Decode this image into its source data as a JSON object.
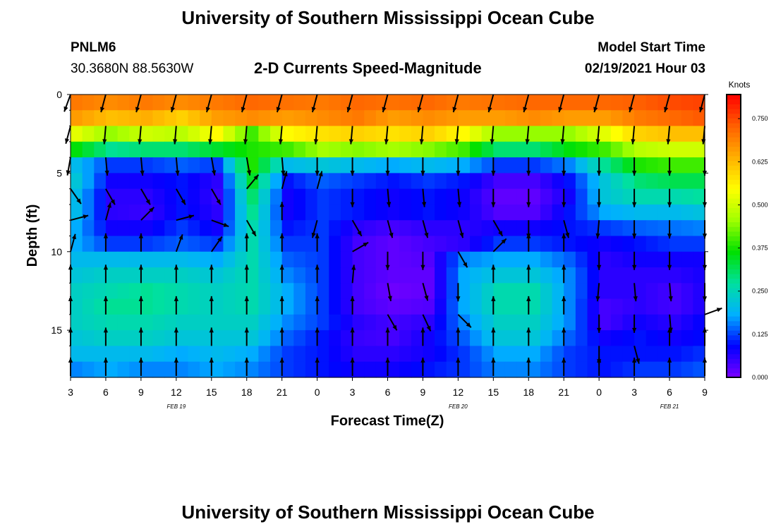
{
  "header": {
    "title": "University of Southern Mississippi Ocean Cube",
    "footer_title": "University of Southern Mississippi Ocean Cube",
    "station_id": "PNLM6",
    "station_coords": "30.3680N 88.5630W",
    "subtitle": "2-D Currents Speed-Magnitude",
    "model_label": "Model Start Time",
    "model_time": "02/19/2021 Hour 03"
  },
  "chart_data": {
    "type": "heatmap",
    "title": "2-D Currents Speed-Magnitude",
    "xlabel": "Forecast Time(Z)",
    "ylabel": "Depth (ft)",
    "x_ticks": [
      "3",
      "6",
      "9",
      "12",
      "15",
      "18",
      "21",
      "0",
      "3",
      "6",
      "9",
      "12",
      "15",
      "18",
      "21",
      "0",
      "3",
      "6",
      "9"
    ],
    "x_range_hours": [
      0,
      54
    ],
    "x_date_labels": [
      {
        "label": "FEB 19",
        "hour": 9
      },
      {
        "label": "FEB 20",
        "hour": 33
      },
      {
        "label": "FEB 21",
        "hour": 51
      }
    ],
    "y_ticks": [
      0,
      5,
      10,
      15
    ],
    "ylim": [
      0,
      18
    ],
    "colorbar": {
      "units": "Knots",
      "min": 0.0,
      "max": 0.82,
      "ticks": [
        "0.000",
        "0.125",
        "0.250",
        "0.375",
        "0.500",
        "0.625",
        "0.750"
      ],
      "colors": [
        "#7a00ff",
        "#0000ff",
        "#00b0ff",
        "#00e0a0",
        "#00e000",
        "#a0ff00",
        "#ffff00",
        "#ffb000",
        "#ff6000",
        "#ff0000"
      ]
    },
    "depth_layers": [
      0.5,
      1.5,
      2.5,
      3.5,
      4.5,
      5.5,
      6.5,
      7.5,
      8.5,
      9.5,
      10.5,
      11.5,
      12.5,
      13.5,
      14.5,
      15.5,
      16.5,
      17.5
    ],
    "time_columns_hours": [
      0,
      3,
      6,
      9,
      12,
      15,
      18,
      21,
      24,
      27,
      30,
      33,
      36,
      39,
      42,
      45,
      48,
      51,
      54
    ],
    "speed_knots": [
      [
        0.7,
        0.68,
        0.7,
        0.68,
        0.7,
        0.72,
        0.71,
        0.7,
        0.72,
        0.71,
        0.72,
        0.7,
        0.71,
        0.72,
        0.72,
        0.72,
        0.73,
        0.75,
        0.76
      ],
      [
        0.66,
        0.62,
        0.64,
        0.6,
        0.66,
        0.68,
        0.66,
        0.68,
        0.7,
        0.66,
        0.68,
        0.66,
        0.66,
        0.68,
        0.66,
        0.66,
        0.7,
        0.72,
        0.74
      ],
      [
        0.52,
        0.45,
        0.5,
        0.48,
        0.55,
        0.4,
        0.55,
        0.58,
        0.6,
        0.58,
        0.6,
        0.55,
        0.45,
        0.45,
        0.45,
        0.52,
        0.6,
        0.62,
        0.62
      ],
      [
        0.36,
        0.28,
        0.3,
        0.3,
        0.34,
        0.38,
        0.4,
        0.46,
        0.44,
        0.46,
        0.44,
        0.4,
        0.3,
        0.3,
        0.36,
        0.4,
        0.48,
        0.5,
        0.5
      ],
      [
        0.2,
        0.12,
        0.12,
        0.14,
        0.12,
        0.38,
        0.2,
        0.22,
        0.2,
        0.18,
        0.2,
        0.18,
        0.12,
        0.12,
        0.16,
        0.28,
        0.38,
        0.4,
        0.4
      ],
      [
        0.22,
        0.08,
        0.08,
        0.1,
        0.06,
        0.34,
        0.1,
        0.14,
        0.12,
        0.1,
        0.12,
        0.1,
        0.04,
        0.04,
        0.1,
        0.22,
        0.3,
        0.32,
        0.32
      ],
      [
        0.2,
        0.06,
        0.06,
        0.1,
        0.05,
        0.3,
        0.08,
        0.12,
        0.1,
        0.08,
        0.1,
        0.08,
        0.02,
        0.02,
        0.08,
        0.22,
        0.26,
        0.26,
        0.28
      ],
      [
        0.2,
        0.06,
        0.05,
        0.1,
        0.06,
        0.28,
        0.08,
        0.12,
        0.1,
        0.08,
        0.1,
        0.08,
        0.03,
        0.03,
        0.1,
        0.18,
        0.2,
        0.2,
        0.22
      ],
      [
        0.18,
        0.08,
        0.08,
        0.12,
        0.08,
        0.26,
        0.1,
        0.12,
        0.06,
        0.04,
        0.06,
        0.06,
        0.08,
        0.08,
        0.1,
        0.12,
        0.14,
        0.15,
        0.16
      ],
      [
        0.18,
        0.12,
        0.12,
        0.14,
        0.12,
        0.26,
        0.12,
        0.12,
        0.04,
        0.02,
        0.04,
        0.06,
        0.12,
        0.12,
        0.1,
        0.08,
        0.1,
        0.12,
        0.12
      ],
      [
        0.2,
        0.2,
        0.2,
        0.2,
        0.18,
        0.26,
        0.14,
        0.12,
        0.04,
        0.02,
        0.03,
        0.16,
        0.18,
        0.18,
        0.14,
        0.06,
        0.08,
        0.08,
        0.08
      ],
      [
        0.22,
        0.24,
        0.24,
        0.24,
        0.22,
        0.26,
        0.16,
        0.12,
        0.04,
        0.02,
        0.02,
        0.18,
        0.22,
        0.22,
        0.16,
        0.06,
        0.06,
        0.06,
        0.08
      ],
      [
        0.24,
        0.26,
        0.28,
        0.26,
        0.24,
        0.26,
        0.18,
        0.12,
        0.04,
        0.01,
        0.02,
        0.18,
        0.26,
        0.26,
        0.16,
        0.06,
        0.06,
        0.04,
        0.08
      ],
      [
        0.24,
        0.28,
        0.28,
        0.26,
        0.24,
        0.26,
        0.18,
        0.12,
        0.04,
        0.02,
        0.03,
        0.18,
        0.26,
        0.26,
        0.16,
        0.04,
        0.06,
        0.04,
        0.08
      ],
      [
        0.24,
        0.26,
        0.26,
        0.24,
        0.24,
        0.24,
        0.16,
        0.12,
        0.06,
        0.04,
        0.06,
        0.16,
        0.24,
        0.24,
        0.16,
        0.04,
        0.08,
        0.06,
        0.1
      ],
      [
        0.22,
        0.24,
        0.24,
        0.22,
        0.22,
        0.22,
        0.14,
        0.1,
        0.05,
        0.04,
        0.08,
        0.14,
        0.22,
        0.22,
        0.14,
        0.08,
        0.1,
        0.08,
        0.1
      ],
      [
        0.2,
        0.2,
        0.2,
        0.18,
        0.2,
        0.18,
        0.12,
        0.1,
        0.06,
        0.06,
        0.08,
        0.12,
        0.18,
        0.18,
        0.12,
        0.1,
        0.1,
        0.1,
        0.12
      ],
      [
        0.16,
        0.18,
        0.16,
        0.16,
        0.18,
        0.16,
        0.12,
        0.1,
        0.08,
        0.08,
        0.1,
        0.12,
        0.16,
        0.16,
        0.12,
        0.1,
        0.12,
        0.12,
        0.14
      ]
    ],
    "vectors": {
      "time_hours": [
        0,
        3,
        6,
        9,
        12,
        15,
        18,
        21,
        24,
        27,
        30,
        33,
        36,
        39,
        42,
        45,
        48,
        51,
        54
      ],
      "depths_ft": [
        0,
        2,
        4,
        6,
        8,
        10,
        12,
        14,
        16,
        18
      ],
      "direction_deg": [
        [
          200,
          195,
          195,
          195,
          195,
          195,
          195,
          195,
          195,
          195,
          195,
          195,
          195,
          195,
          195,
          195,
          195,
          195,
          195
        ],
        [
          195,
          185,
          185,
          185,
          185,
          185,
          185,
          185,
          185,
          185,
          185,
          185,
          185,
          185,
          185,
          185,
          185,
          185,
          185
        ],
        [
          190,
          175,
          175,
          175,
          170,
          170,
          175,
          180,
          180,
          180,
          180,
          180,
          180,
          180,
          180,
          180,
          180,
          180,
          180
        ],
        [
          145,
          150,
          150,
          150,
          150,
          40,
          15,
          15,
          180,
          175,
          175,
          175,
          180,
          180,
          180,
          180,
          180,
          180,
          180
        ],
        [
          75,
          15,
          45,
          75,
          110,
          150,
          0,
          195,
          150,
          165,
          165,
          165,
          150,
          180,
          165,
          185,
          180,
          180,
          180
        ],
        [
          15,
          0,
          0,
          20,
          35,
          0,
          0,
          0,
          60,
          180,
          180,
          150,
          45,
          0,
          0,
          180,
          180,
          180,
          180
        ],
        [
          0,
          0,
          0,
          0,
          0,
          0,
          0,
          0,
          5,
          170,
          165,
          180,
          0,
          0,
          0,
          185,
          175,
          175,
          180
        ],
        [
          0,
          0,
          0,
          0,
          0,
          0,
          0,
          0,
          0,
          150,
          155,
          135,
          0,
          0,
          0,
          180,
          180,
          175,
          70
        ],
        [
          0,
          0,
          0,
          0,
          0,
          0,
          0,
          0,
          0,
          0,
          0,
          0,
          0,
          0,
          0,
          180,
          165,
          0,
          0
        ],
        [
          0,
          0,
          0,
          0,
          0,
          0,
          0,
          0,
          0,
          0,
          0,
          0,
          0,
          0,
          0,
          0,
          0,
          0,
          0
        ]
      ]
    }
  }
}
